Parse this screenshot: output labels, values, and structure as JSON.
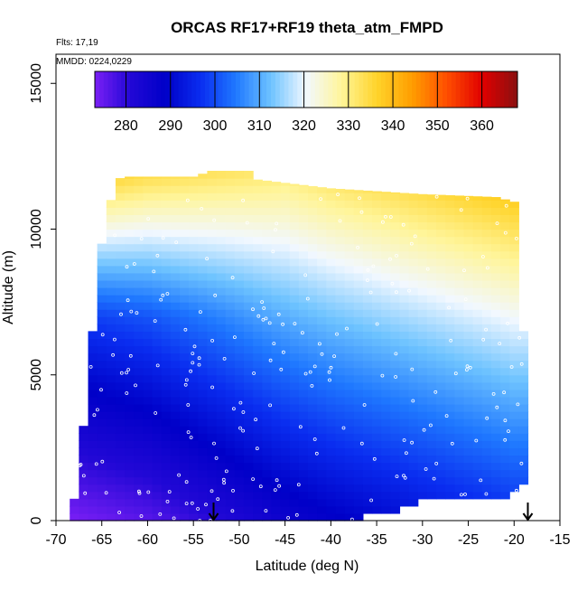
{
  "chart_data": {
    "type": "heatmap",
    "title": "ORCAS RF17+RF19 theta_atm_FMPD",
    "flights_label": "Flts: 17,19",
    "dates_label": "MMDD: 0224,0229",
    "xlabel": "Latitude (deg N)",
    "ylabel": "Altitude (m)",
    "xlim": [
      -70,
      -15
    ],
    "ylim": [
      0,
      16000
    ],
    "x_ticks": [
      -70,
      -65,
      -60,
      -55,
      -50,
      -45,
      -40,
      -35,
      -30,
      -25,
      -20,
      -15
    ],
    "y_ticks": [
      0,
      5000,
      10000,
      15000
    ],
    "colorbar": {
      "min": 273,
      "max": 368,
      "ticks": [
        280,
        290,
        300,
        310,
        320,
        330,
        340,
        350,
        360
      ],
      "colors": [
        "#7a1ff5",
        "#2208d6",
        "#0000c8",
        "#0a2df0",
        "#1f78ff",
        "#6ec3ff",
        "#f2f8ff",
        "#fff59a",
        "#ffd42b",
        "#ff9e00",
        "#ff4d00",
        "#e00000",
        "#8a1010"
      ]
    },
    "field": {
      "x_start": -68.5,
      "x_end": -18.5,
      "x_step": 1,
      "y_step": 250,
      "left_edge": [
        [
          0,
          -68.5
        ],
        [
          1000,
          -67.8
        ],
        [
          2500,
          -67.2
        ],
        [
          4500,
          -66.6
        ],
        [
          6500,
          -66
        ],
        [
          8000,
          -65.6
        ],
        [
          9000,
          -65.2
        ],
        [
          10500,
          -64.6
        ],
        [
          11500,
          -63.5
        ],
        [
          11800,
          -62.5
        ]
      ],
      "top_edge": [
        [
          -62.5,
          11800
        ],
        [
          -55,
          11800
        ],
        [
          -53,
          12000
        ],
        [
          -49,
          12000
        ],
        [
          -48,
          11700
        ],
        [
          -40,
          11400
        ],
        [
          -30,
          11200
        ],
        [
          -22,
          11100
        ],
        [
          -19.5,
          10900
        ]
      ],
      "right_edge": [
        [
          0,
          -37
        ],
        [
          250,
          -37
        ],
        [
          300,
          -33
        ],
        [
          600,
          -33
        ],
        [
          700,
          -24
        ],
        [
          800,
          -24
        ],
        [
          900,
          -19.5
        ],
        [
          1500,
          -18.5
        ],
        [
          4500,
          -18.5
        ],
        [
          6500,
          -19
        ],
        [
          9000,
          -19.5
        ],
        [
          11000,
          -19.5
        ]
      ],
      "theta_surface_profile": [
        [
          -68.5,
          273
        ],
        [
          -60,
          276
        ],
        [
          -52,
          281
        ],
        [
          -46,
          285
        ],
        [
          -40,
          288
        ],
        [
          -30,
          292
        ],
        [
          -20,
          296
        ]
      ],
      "theta_lapse_low": 0.0032,
      "theta_lapse_high": 0.0038
    },
    "markers": [
      {
        "lat": -52.8,
        "label": "↓"
      },
      {
        "lat": -18.5,
        "label": "↓"
      }
    ]
  }
}
